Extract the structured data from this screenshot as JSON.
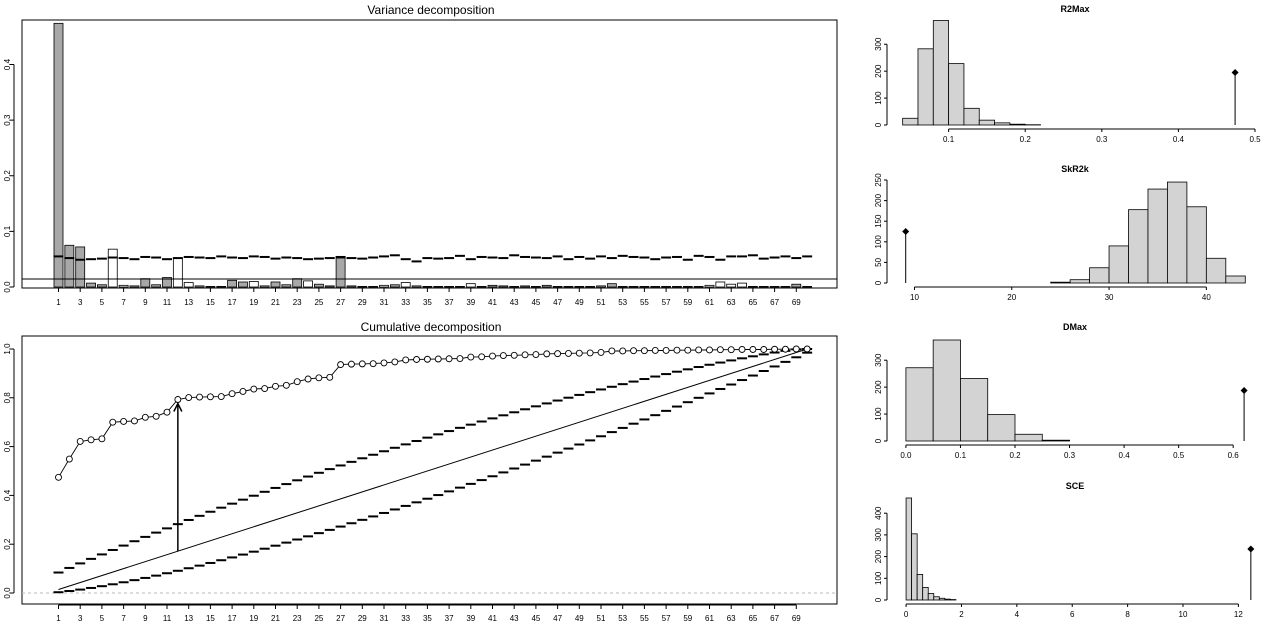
{
  "chart_data": [
    {
      "type": "bar",
      "title": "Variance decomposition",
      "xlabel": "",
      "ylabel": "",
      "n": 70,
      "ylim": [
        0,
        0.48
      ],
      "yticks": [
        "0.0",
        "0.1",
        "0.2",
        "0.3",
        "0.4"
      ],
      "xticks": [
        "1",
        "3",
        "5",
        "7",
        "9",
        "11",
        "13",
        "15",
        "17",
        "19",
        "21",
        "23",
        "25",
        "27",
        "29",
        "31",
        "33",
        "35",
        "37",
        "39",
        "41",
        "43",
        "45",
        "47",
        "49",
        "51",
        "53",
        "55",
        "57",
        "59",
        "61",
        "63",
        "65",
        "67",
        "69"
      ],
      "threshold_line": 0.0143,
      "values": [
        0.474,
        0.075,
        0.072,
        0.007,
        0.004,
        0.068,
        0.003,
        0.002,
        0.015,
        0.004,
        0.017,
        0.052,
        0.008,
        0.002,
        0.001,
        0.001,
        0.012,
        0.009,
        0.01,
        0.002,
        0.009,
        0.004,
        0.015,
        0.011,
        0.005,
        0.002,
        0.052,
        0.002,
        0.001,
        0.001,
        0.003,
        0.004,
        0.008,
        0.002,
        0.001,
        0.001,
        0.001,
        0.001,
        0.006,
        0.001,
        0.003,
        0.002,
        0.001,
        0.002,
        0.001,
        0.003,
        0.001,
        0.001,
        0.001,
        0.001,
        0.002,
        0.006,
        0.001,
        0.001,
        0.001,
        0.001,
        0.001,
        0.001,
        0.001,
        0.001,
        0.003,
        0.009,
        0.005,
        0.007,
        0.001,
        0.001,
        0.001,
        0.001,
        0.005,
        0.001
      ],
      "significant": [
        true,
        true,
        true,
        true,
        true,
        false,
        false,
        false,
        true,
        true,
        true,
        false,
        false,
        false,
        false,
        false,
        true,
        true,
        false,
        false,
        true,
        true,
        true,
        false,
        true,
        true,
        true,
        true,
        false,
        false,
        false,
        true,
        false,
        false,
        false,
        false,
        false,
        false,
        false,
        false,
        true,
        true,
        false,
        true,
        false,
        true,
        false,
        true,
        false,
        false,
        false,
        true,
        false,
        false,
        false,
        false,
        false,
        false,
        false,
        false,
        false,
        false,
        false,
        false,
        false,
        false,
        false,
        false,
        true,
        true
      ],
      "null_quantile": [
        0.055,
        0.052,
        0.049,
        0.05,
        0.051,
        0.053,
        0.052,
        0.05,
        0.054,
        0.053,
        0.05,
        0.052,
        0.054,
        0.053,
        0.052,
        0.055,
        0.053,
        0.052,
        0.055,
        0.054,
        0.051,
        0.053,
        0.052,
        0.05,
        0.051,
        0.052,
        0.054,
        0.052,
        0.051,
        0.053,
        0.055,
        0.057,
        0.05,
        0.046,
        0.052,
        0.051,
        0.052,
        0.056,
        0.05,
        0.054,
        0.053,
        0.052,
        0.057,
        0.054,
        0.053,
        0.052,
        0.055,
        0.05,
        0.054,
        0.051,
        0.055,
        0.052,
        0.056,
        0.054,
        0.053,
        0.05,
        0.053,
        0.054,
        0.049,
        0.056,
        0.054,
        0.049,
        0.055,
        0.055,
        0.057,
        0.051,
        0.053,
        0.055,
        0.052,
        0.055
      ]
    },
    {
      "type": "line",
      "title": "Cumulative decomposition",
      "ylim": [
        0,
        1
      ],
      "yticks": [
        "0.0",
        "0.2",
        "0.4",
        "0.6",
        "0.8",
        "1.0"
      ],
      "xticks": [
        "1",
        "3",
        "5",
        "7",
        "9",
        "11",
        "13",
        "15",
        "17",
        "19",
        "21",
        "23",
        "25",
        "27",
        "29",
        "31",
        "33",
        "35",
        "37",
        "39",
        "41",
        "43",
        "45",
        "47",
        "49",
        "51",
        "53",
        "55",
        "57",
        "59",
        "61",
        "63",
        "65",
        "67",
        "69"
      ],
      "arrow_at": 12,
      "cumulative": [
        0.474,
        0.549,
        0.621,
        0.628,
        0.632,
        0.7,
        0.703,
        0.705,
        0.72,
        0.724,
        0.741,
        0.793,
        0.801,
        0.803,
        0.804,
        0.805,
        0.817,
        0.826,
        0.836,
        0.838,
        0.847,
        0.851,
        0.866,
        0.877,
        0.882,
        0.884,
        0.936,
        0.938,
        0.939,
        0.94,
        0.943,
        0.947,
        0.955,
        0.957,
        0.958,
        0.959,
        0.96,
        0.961,
        0.967,
        0.968,
        0.971,
        0.973,
        0.974,
        0.976,
        0.977,
        0.98,
        0.981,
        0.982,
        0.983,
        0.984,
        0.986,
        0.992,
        0.992,
        0.993,
        0.993,
        0.994,
        0.994,
        0.995,
        0.995,
        0.996,
        0.996,
        0.997,
        0.997,
        0.998,
        0.998,
        0.998,
        0.999,
        0.999,
        1.0,
        1.0
      ]
    },
    {
      "type": "histogram",
      "title": "R2Max",
      "breaks": [
        0.04,
        0.06,
        0.08,
        0.1,
        0.12,
        0.14,
        0.16,
        0.18,
        0.2,
        0.22
      ],
      "counts": [
        25,
        283,
        388,
        228,
        62,
        18,
        8,
        3,
        1
      ],
      "observed": 0.474,
      "xlim": [
        0.03,
        0.5
      ],
      "ymax": 390,
      "xticks": [
        0.1,
        0.2,
        0.3,
        0.4,
        0.5
      ],
      "xtick_labels": [
        "0.1",
        "0.2",
        "0.3",
        "0.4",
        "0.5"
      ],
      "yticks": [
        0,
        100,
        200,
        300
      ],
      "ytick_labels": [
        "0",
        "100",
        "200",
        "300"
      ]
    },
    {
      "type": "histogram",
      "title": "SkR2k",
      "breaks": [
        24,
        26,
        28,
        30,
        32,
        34,
        36,
        38,
        40,
        42,
        44
      ],
      "counts": [
        2,
        8,
        37,
        90,
        178,
        228,
        245,
        185,
        60,
        17
      ],
      "observed": 9.1,
      "xlim": [
        8,
        45
      ],
      "ymax": 250,
      "xticks": [
        10,
        20,
        30,
        40
      ],
      "xtick_labels": [
        "10",
        "20",
        "30",
        "40"
      ],
      "yticks": [
        0,
        50,
        100,
        150,
        200,
        250
      ],
      "ytick_labels": [
        "0",
        "50",
        "100",
        "150",
        "200",
        "250"
      ]
    },
    {
      "type": "histogram",
      "title": "DMax",
      "breaks": [
        0.0,
        0.05,
        0.1,
        0.15,
        0.2,
        0.25,
        0.3
      ],
      "counts": [
        272,
        375,
        232,
        98,
        25,
        3
      ],
      "observed": 0.62,
      "xlim": [
        -0.02,
        0.64
      ],
      "ymax": 375,
      "xticks": [
        0.0,
        0.1,
        0.2,
        0.3,
        0.4,
        0.5,
        0.6
      ],
      "xtick_labels": [
        "0.0",
        "0.1",
        "0.2",
        "0.3",
        "0.4",
        "0.5",
        "0.6"
      ],
      "yticks": [
        0,
        100,
        200,
        300
      ],
      "ytick_labels": [
        "0",
        "100",
        "200",
        "300"
      ]
    },
    {
      "type": "histogram",
      "title": "SCE",
      "breaks": [
        0.0,
        0.2,
        0.4,
        0.6,
        0.8,
        1.0,
        1.2,
        1.4,
        1.6,
        1.8
      ],
      "counts": [
        470,
        305,
        118,
        58,
        30,
        15,
        8,
        4,
        2
      ],
      "observed": 12.45,
      "xlim": [
        -0.4,
        12.6
      ],
      "ymax": 470,
      "xticks": [
        0,
        2,
        4,
        6,
        8,
        10,
        12
      ],
      "xtick_labels": [
        "0",
        "2",
        "4",
        "6",
        "8",
        "10",
        "12"
      ],
      "yticks": [
        0,
        100,
        200,
        300,
        400
      ],
      "ytick_labels": [
        "0",
        "100",
        "200",
        "300",
        "400"
      ]
    }
  ]
}
